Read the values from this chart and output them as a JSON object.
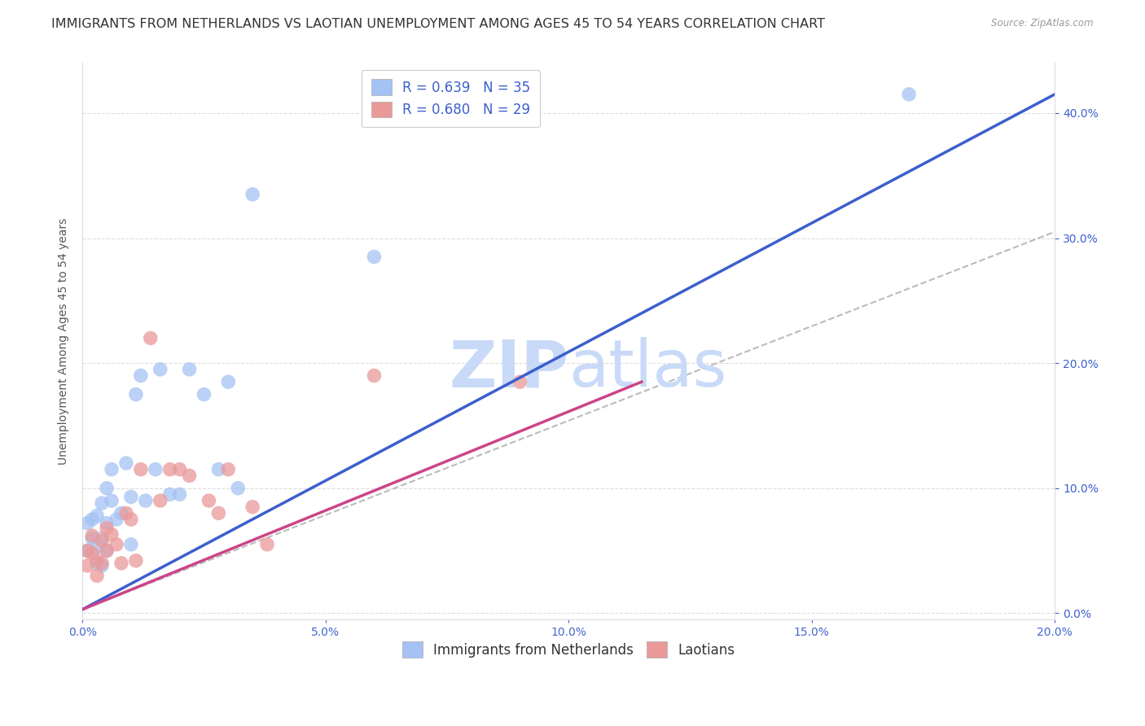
{
  "title": "IMMIGRANTS FROM NETHERLANDS VS LAOTIAN UNEMPLOYMENT AMONG AGES 45 TO 54 YEARS CORRELATION CHART",
  "source": "Source: ZipAtlas.com",
  "ylabel": "Unemployment Among Ages 45 to 54 years",
  "xlim": [
    0.0,
    0.2
  ],
  "ylim": [
    -0.005,
    0.44
  ],
  "xticks": [
    0.0,
    0.05,
    0.1,
    0.15,
    0.2
  ],
  "yticks": [
    0.0,
    0.1,
    0.2,
    0.3,
    0.4
  ],
  "blue_r": 0.639,
  "blue_n": 35,
  "pink_r": 0.68,
  "pink_n": 29,
  "blue_scatter_x": [
    0.001,
    0.001,
    0.002,
    0.002,
    0.003,
    0.003,
    0.003,
    0.004,
    0.004,
    0.004,
    0.005,
    0.005,
    0.005,
    0.006,
    0.006,
    0.007,
    0.008,
    0.009,
    0.01,
    0.01,
    0.011,
    0.012,
    0.013,
    0.015,
    0.016,
    0.018,
    0.02,
    0.022,
    0.025,
    0.028,
    0.03,
    0.032,
    0.035,
    0.06,
    0.17
  ],
  "blue_scatter_y": [
    0.05,
    0.072,
    0.06,
    0.075,
    0.053,
    0.04,
    0.078,
    0.088,
    0.06,
    0.038,
    0.1,
    0.072,
    0.05,
    0.115,
    0.09,
    0.075,
    0.08,
    0.12,
    0.093,
    0.055,
    0.175,
    0.19,
    0.09,
    0.115,
    0.195,
    0.095,
    0.095,
    0.195,
    0.175,
    0.115,
    0.185,
    0.1,
    0.335,
    0.285,
    0.415
  ],
  "pink_scatter_x": [
    0.001,
    0.001,
    0.002,
    0.002,
    0.003,
    0.003,
    0.004,
    0.004,
    0.005,
    0.005,
    0.006,
    0.007,
    0.008,
    0.009,
    0.01,
    0.011,
    0.012,
    0.014,
    0.016,
    0.018,
    0.02,
    0.022,
    0.026,
    0.028,
    0.03,
    0.035,
    0.038,
    0.06,
    0.09
  ],
  "pink_scatter_y": [
    0.038,
    0.05,
    0.048,
    0.062,
    0.03,
    0.042,
    0.058,
    0.04,
    0.068,
    0.05,
    0.063,
    0.055,
    0.04,
    0.08,
    0.075,
    0.042,
    0.115,
    0.22,
    0.09,
    0.115,
    0.115,
    0.11,
    0.09,
    0.08,
    0.115,
    0.085,
    0.055,
    0.19,
    0.185
  ],
  "blue_line_x": [
    0.0,
    0.2
  ],
  "blue_line_y": [
    0.003,
    0.415
  ],
  "pink_line_x": [
    0.0,
    0.115
  ],
  "pink_line_y": [
    0.003,
    0.185
  ],
  "ref_line_x": [
    0.0,
    0.2
  ],
  "ref_line_y": [
    0.003,
    0.305
  ],
  "blue_scatter_color": "#a4c2f4",
  "pink_scatter_color": "#ea9999",
  "blue_line_color": "#3c5fcd",
  "pink_line_color": "#cc4488",
  "ref_line_color": "#bbbbbb",
  "background_color": "#ffffff",
  "watermark_zip_color": "#c9daf8",
  "watermark_atlas_color": "#c9daf8",
  "title_fontsize": 11.5,
  "axis_label_fontsize": 10,
  "tick_fontsize": 10,
  "legend_fontsize": 12
}
